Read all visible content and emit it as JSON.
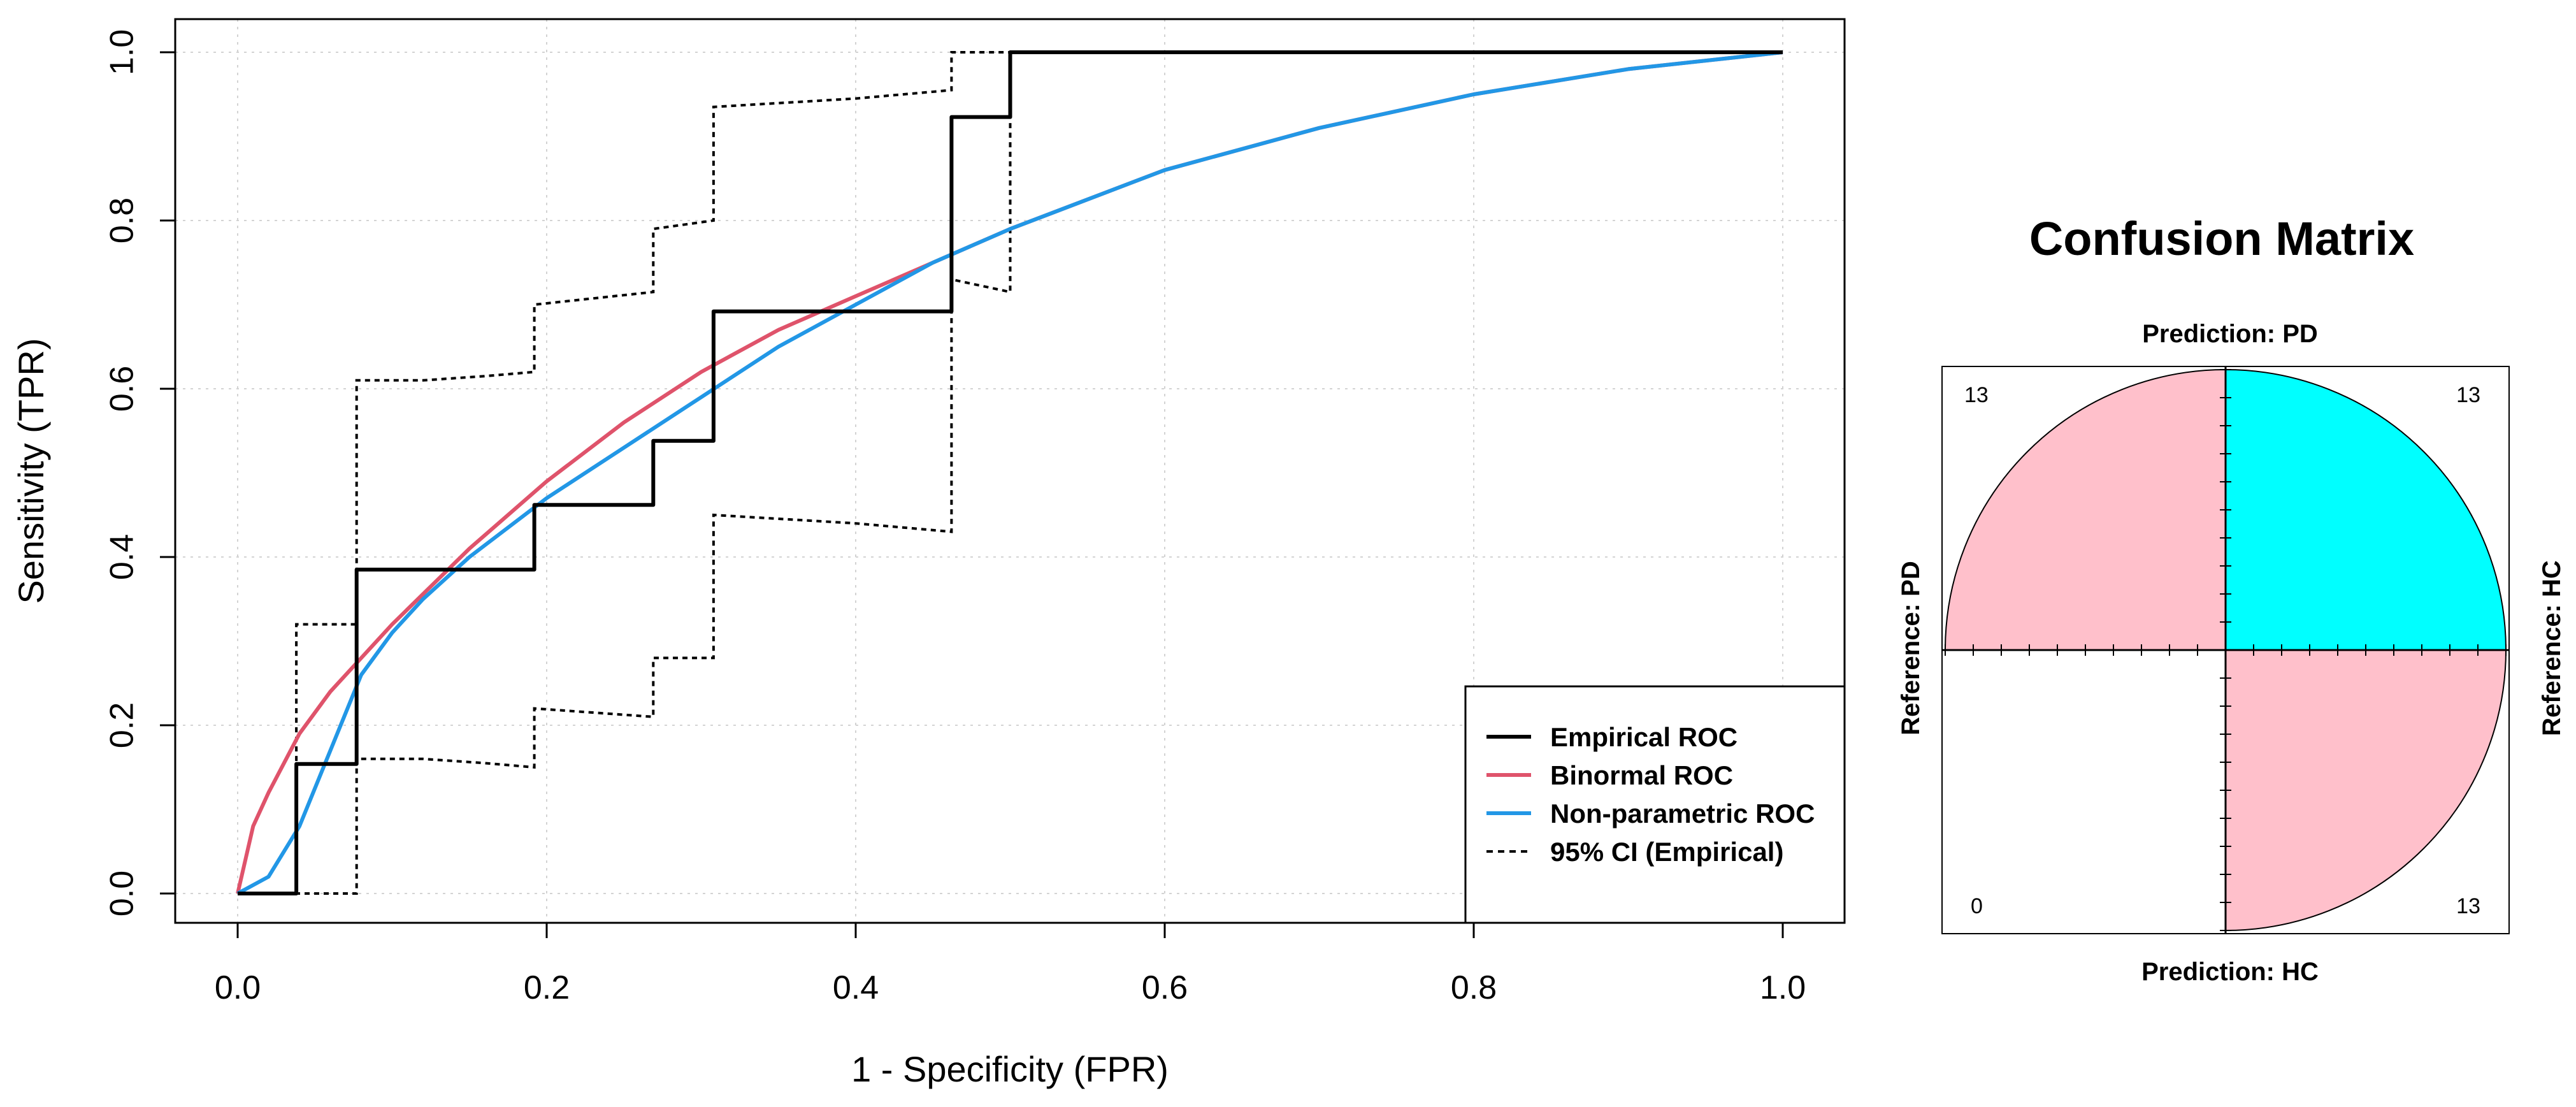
{
  "chart_data": [
    {
      "type": "line",
      "title": "",
      "xlabel": "1 - Specificity (FPR)",
      "ylabel": "Sensitivity (TPR)",
      "xlim": [
        0,
        1
      ],
      "ylim": [
        0,
        1
      ],
      "xticks": [
        "0.0",
        "0.2",
        "0.4",
        "0.6",
        "0.8",
        "1.0"
      ],
      "yticks": [
        "0.0",
        "0.2",
        "0.4",
        "0.6",
        "0.8",
        "1.0"
      ],
      "grid": true,
      "legend_position": "bottom-right",
      "series": [
        {
          "name": "Empirical ROC",
          "color": "#000000",
          "style": "solid",
          "x": [
            0.0,
            0.038,
            0.038,
            0.077,
            0.077,
            0.192,
            0.192,
            0.269,
            0.269,
            0.308,
            0.308,
            0.462,
            0.462,
            0.5,
            0.5,
            1.0
          ],
          "y": [
            0.0,
            0.0,
            0.154,
            0.154,
            0.385,
            0.385,
            0.462,
            0.462,
            0.538,
            0.538,
            0.692,
            0.692,
            0.923,
            0.923,
            1.0,
            1.0
          ]
        },
        {
          "name": "Binormal ROC",
          "color": "#DF536B",
          "style": "solid",
          "x": [
            0.0,
            0.01,
            0.02,
            0.04,
            0.06,
            0.08,
            0.1,
            0.15,
            0.2,
            0.25,
            0.3,
            0.35,
            0.4,
            0.45,
            0.5,
            0.6,
            0.7,
            0.8,
            0.9,
            1.0
          ],
          "y": [
            0.0,
            0.08,
            0.12,
            0.19,
            0.24,
            0.28,
            0.32,
            0.41,
            0.49,
            0.56,
            0.62,
            0.67,
            0.71,
            0.75,
            0.79,
            0.86,
            0.91,
            0.95,
            0.98,
            1.0
          ]
        },
        {
          "name": "Non-parametric ROC",
          "color": "#2297E6",
          "style": "solid",
          "x": [
            0.0,
            0.02,
            0.04,
            0.06,
            0.08,
            0.1,
            0.12,
            0.15,
            0.2,
            0.25,
            0.3,
            0.35,
            0.4,
            0.45,
            0.5,
            0.6,
            0.7,
            0.8,
            0.9,
            1.0
          ],
          "y": [
            0.0,
            0.02,
            0.08,
            0.17,
            0.26,
            0.31,
            0.35,
            0.4,
            0.47,
            0.53,
            0.59,
            0.65,
            0.7,
            0.75,
            0.79,
            0.86,
            0.91,
            0.95,
            0.98,
            1.0
          ]
        },
        {
          "name": "95% CI (Empirical)",
          "color": "#000000",
          "style": "dotted",
          "upper": {
            "x": [
              0.0,
              0.038,
              0.038,
              0.077,
              0.077,
              0.12,
              0.16,
              0.192,
              0.192,
              0.269,
              0.269,
              0.308,
              0.308,
              0.4,
              0.462,
              0.462,
              0.5,
              0.5,
              1.0
            ],
            "y": [
              0.0,
              0.0,
              0.32,
              0.32,
              0.61,
              0.61,
              0.615,
              0.62,
              0.7,
              0.715,
              0.79,
              0.8,
              0.935,
              0.945,
              0.955,
              1.0,
              1.0,
              1.0,
              1.0
            ]
          },
          "lower": {
            "x": [
              0.0,
              0.077,
              0.077,
              0.12,
              0.16,
              0.192,
              0.192,
              0.269,
              0.269,
              0.308,
              0.308,
              0.4,
              0.462,
              0.462,
              0.5,
              0.5
            ],
            "y": [
              0.0,
              0.0,
              0.16,
              0.16,
              0.155,
              0.15,
              0.22,
              0.21,
              0.28,
              0.28,
              0.45,
              0.44,
              0.43,
              0.73,
              0.715,
              1.0
            ]
          }
        }
      ]
    },
    {
      "type": "fourfold",
      "title": "Confusion Matrix",
      "labels": {
        "top": "Prediction: PD",
        "bottom": "Prediction: HC",
        "left": "Reference: PD",
        "right": "Reference: HC"
      },
      "cells": [
        {
          "position": "top-left",
          "value": 13,
          "fill": "#FFC0CB"
        },
        {
          "position": "top-right",
          "value": 13,
          "fill": "#00FFFF"
        },
        {
          "position": "bottom-left",
          "value": 0,
          "fill": "#FFC0CB"
        },
        {
          "position": "bottom-right",
          "value": 13,
          "fill": "#FFC0CB"
        }
      ],
      "max_value": 13
    }
  ]
}
